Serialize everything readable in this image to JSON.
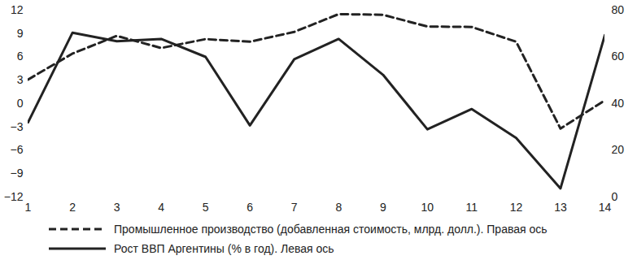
{
  "chart_data": {
    "type": "line",
    "x": [
      1,
      2,
      3,
      4,
      5,
      6,
      7,
      8,
      9,
      10,
      11,
      12,
      13,
      14
    ],
    "xlim": [
      1,
      14
    ],
    "xticks": [
      1,
      2,
      3,
      4,
      5,
      6,
      7,
      8,
      9,
      10,
      11,
      12,
      13,
      14
    ],
    "ylim": [
      -12,
      12
    ],
    "yticks": [
      -12,
      -9,
      -6,
      -3,
      0,
      3,
      6,
      9,
      12
    ],
    "y2lim": [
      0,
      80
    ],
    "y2ticks": [
      0,
      20,
      40,
      60,
      80
    ],
    "grid": false,
    "legend": "bottom",
    "series": [
      {
        "name": "Промышленное производство (добавленная стоимость, млрд. долл.). Правая ось",
        "color": "#222222",
        "line_style": "dashed",
        "axis": "y2",
        "values": [
          50.3,
          61.4,
          69.0,
          63.8,
          67.6,
          66.5,
          70.7,
          78.3,
          78.0,
          73.0,
          72.8,
          66.5,
          29.3,
          41.4
        ]
      },
      {
        "name": "Рост ВВП Аргентины (% в год). Левая ось",
        "color": "#222222",
        "line_style": "solid",
        "values": [
          -2.4,
          9.1,
          8.0,
          8.3,
          6.0,
          -2.8,
          5.7,
          8.3,
          3.7,
          -3.3,
          -0.7,
          -4.4,
          -10.9,
          8.8
        ]
      }
    ]
  }
}
